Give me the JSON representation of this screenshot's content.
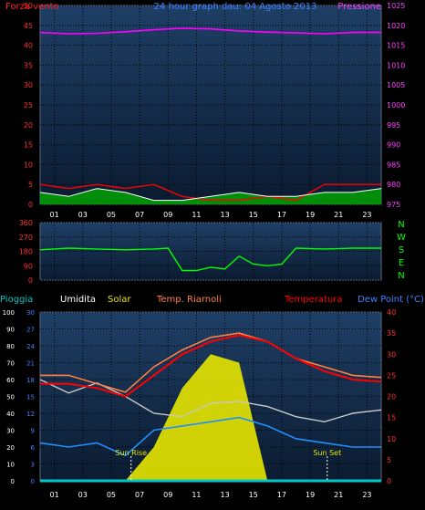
{
  "title": "24 hour graph dau: 04 Agosto 2013",
  "colors": {
    "background": "#000000",
    "plot_top": "#1e3f66",
    "plot_bottom": "#0b1b30",
    "grid": "#000000",
    "wind_avg": "#ff0000",
    "wind_gust": "#ffffff",
    "wind_fill": "#00aa00",
    "pressure": "#ff00ff",
    "direction": "#00ff00",
    "temperature": "#ff0000",
    "apparent": "#ff8040",
    "humidity": "#c8c8c8",
    "dewpoint": "#1e90ff",
    "solar": "#e6e600",
    "rain": "#00c8c8",
    "axis_blue": "#4080ff",
    "axis_red": "#ff2020"
  },
  "x_ticks": [
    "01",
    "03",
    "05",
    "07",
    "09",
    "11",
    "13",
    "15",
    "17",
    "19",
    "21",
    "23"
  ],
  "chart_data": [
    {
      "type": "line",
      "name": "wind-pressure",
      "left_label": "Forza vento",
      "right_label": "Pressione",
      "y_left": {
        "min": 0,
        "max": 50,
        "ticks": [
          0,
          5,
          10,
          15,
          20,
          25,
          30,
          35,
          40,
          45,
          50
        ]
      },
      "y_right": {
        "min": 975,
        "max": 1025,
        "ticks": [
          975,
          980,
          985,
          990,
          995,
          1000,
          1005,
          1010,
          1015,
          1020,
          1025
        ]
      },
      "x": [
        0,
        2,
        4,
        6,
        8,
        10,
        12,
        14,
        16,
        18,
        20,
        22,
        24
      ],
      "series": [
        {
          "key": "wind_avg",
          "axis": "left",
          "values": [
            5,
            4,
            5,
            4,
            5,
            2,
            1,
            1,
            2,
            1,
            5,
            5,
            5
          ]
        },
        {
          "key": "wind_gust",
          "axis": "left",
          "values": [
            3,
            2,
            4,
            3,
            1,
            1,
            2,
            3,
            2,
            2,
            3,
            3,
            4
          ]
        },
        {
          "key": "pressure",
          "axis": "right",
          "values": [
            1018.2,
            1017.9,
            1018.0,
            1018.4,
            1018.9,
            1019.3,
            1019.1,
            1018.6,
            1018.3,
            1018.1,
            1017.9,
            1018.2,
            1018.2
          ]
        }
      ]
    },
    {
      "type": "line",
      "name": "wind-direction",
      "y_left": {
        "min": 0,
        "max": 360,
        "ticks": [
          0,
          90,
          180,
          270,
          360
        ]
      },
      "right_labels": [
        "N",
        "W",
        "S",
        "E",
        "N"
      ],
      "x": [
        0,
        2,
        4,
        6,
        8,
        9,
        10,
        11,
        12,
        13,
        14,
        15,
        16,
        17,
        18,
        20,
        22,
        24
      ],
      "series": [
        {
          "key": "direction",
          "values": [
            190,
            200,
            195,
            190,
            195,
            200,
            60,
            60,
            80,
            70,
            150,
            100,
            90,
            100,
            200,
            195,
            200,
            200
          ]
        }
      ]
    },
    {
      "type": "line",
      "name": "temp-humidity-solar",
      "labels": [
        "Pioggia",
        "Umidita",
        "Solar",
        "Temp. Riarnoli",
        "Temperatura",
        "Dew Point (°C)"
      ],
      "y_left_outer": {
        "min": 0,
        "max": 100,
        "ticks": [
          0,
          10,
          20,
          30,
          40,
          50,
          60,
          70,
          80,
          90,
          100
        ]
      },
      "y_left_inner": {
        "min": 0,
        "max": 30,
        "ticks": [
          0,
          3,
          6,
          9,
          12,
          15,
          18,
          21,
          24,
          27,
          30
        ]
      },
      "y_right": {
        "min": 0,
        "max": 40,
        "ticks": [
          0,
          5,
          10,
          15,
          20,
          25,
          30,
          35,
          40
        ]
      },
      "x": [
        0,
        2,
        4,
        6,
        8,
        10,
        12,
        14,
        16,
        18,
        20,
        22,
        24
      ],
      "series": [
        {
          "key": "temperature",
          "axis": "right",
          "values": [
            23,
            23,
            22,
            20,
            25,
            30,
            33,
            34.5,
            33,
            29,
            26,
            24,
            23.5
          ]
        },
        {
          "key": "apparent",
          "axis": "right",
          "values": [
            25,
            25,
            23,
            21,
            27,
            31,
            34,
            35,
            33,
            29,
            27,
            25,
            24.5
          ]
        },
        {
          "key": "humidity",
          "axis": "outer",
          "values": [
            60,
            52,
            58,
            50,
            40,
            38,
            46,
            47,
            44,
            38,
            35,
            40,
            42
          ]
        },
        {
          "key": "dewpoint",
          "axis": "right",
          "values": [
            9,
            8,
            9,
            6,
            12,
            13,
            14,
            15,
            13,
            10,
            9,
            8,
            8
          ]
        },
        {
          "key": "solar",
          "axis": "outer",
          "values": [
            0,
            0,
            0,
            0,
            20,
            55,
            75,
            70,
            0,
            0,
            0,
            0,
            0
          ]
        },
        {
          "key": "rain",
          "axis": "inner",
          "values": [
            0,
            0,
            0,
            0,
            0,
            0,
            0,
            0,
            0,
            0,
            0,
            0,
            0
          ]
        }
      ],
      "annotations": [
        {
          "text": "Sun Rise",
          "x": 6.4
        },
        {
          "text": "Sun Set",
          "x": 20.2
        }
      ]
    }
  ]
}
